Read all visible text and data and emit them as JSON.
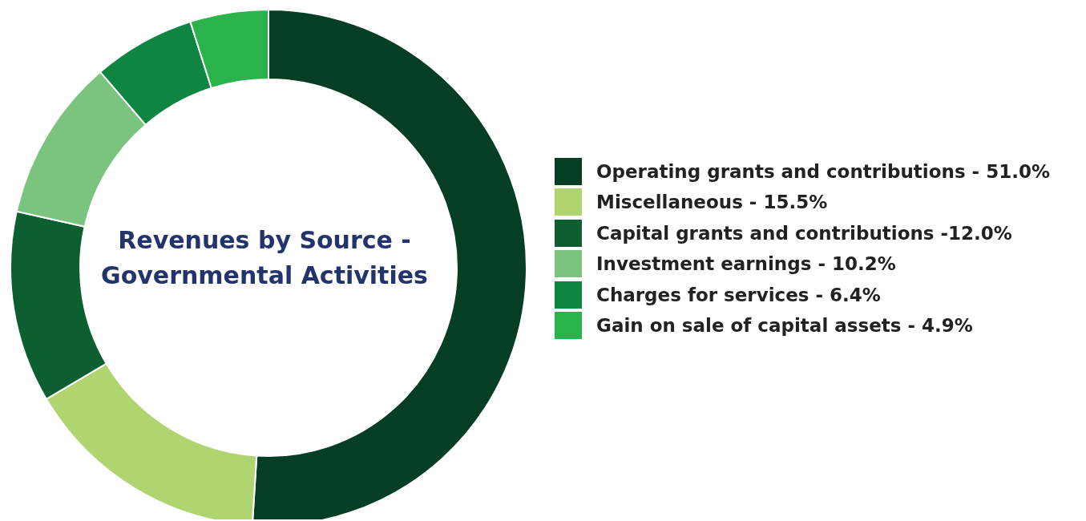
{
  "chart_data": {
    "type": "donut",
    "title": "Revenues by Source - Governmental Activities",
    "categories": [
      "Operating grants and contributions - 51.0%",
      "Miscellaneous - 15.5%",
      "Capital grants and contributions -12.0%",
      "Investment earnings - 10.2%",
      "Charges for services - 6.4%",
      "Gain on sale of capital assets - 4.9%"
    ],
    "values": [
      51.0,
      15.5,
      12.0,
      10.2,
      6.4,
      4.9
    ],
    "colors": [
      "#053d25",
      "#b0d46f",
      "#0d5f31",
      "#7bc47f",
      "#0e8540",
      "#2ab34b"
    ],
    "legend": "right"
  }
}
